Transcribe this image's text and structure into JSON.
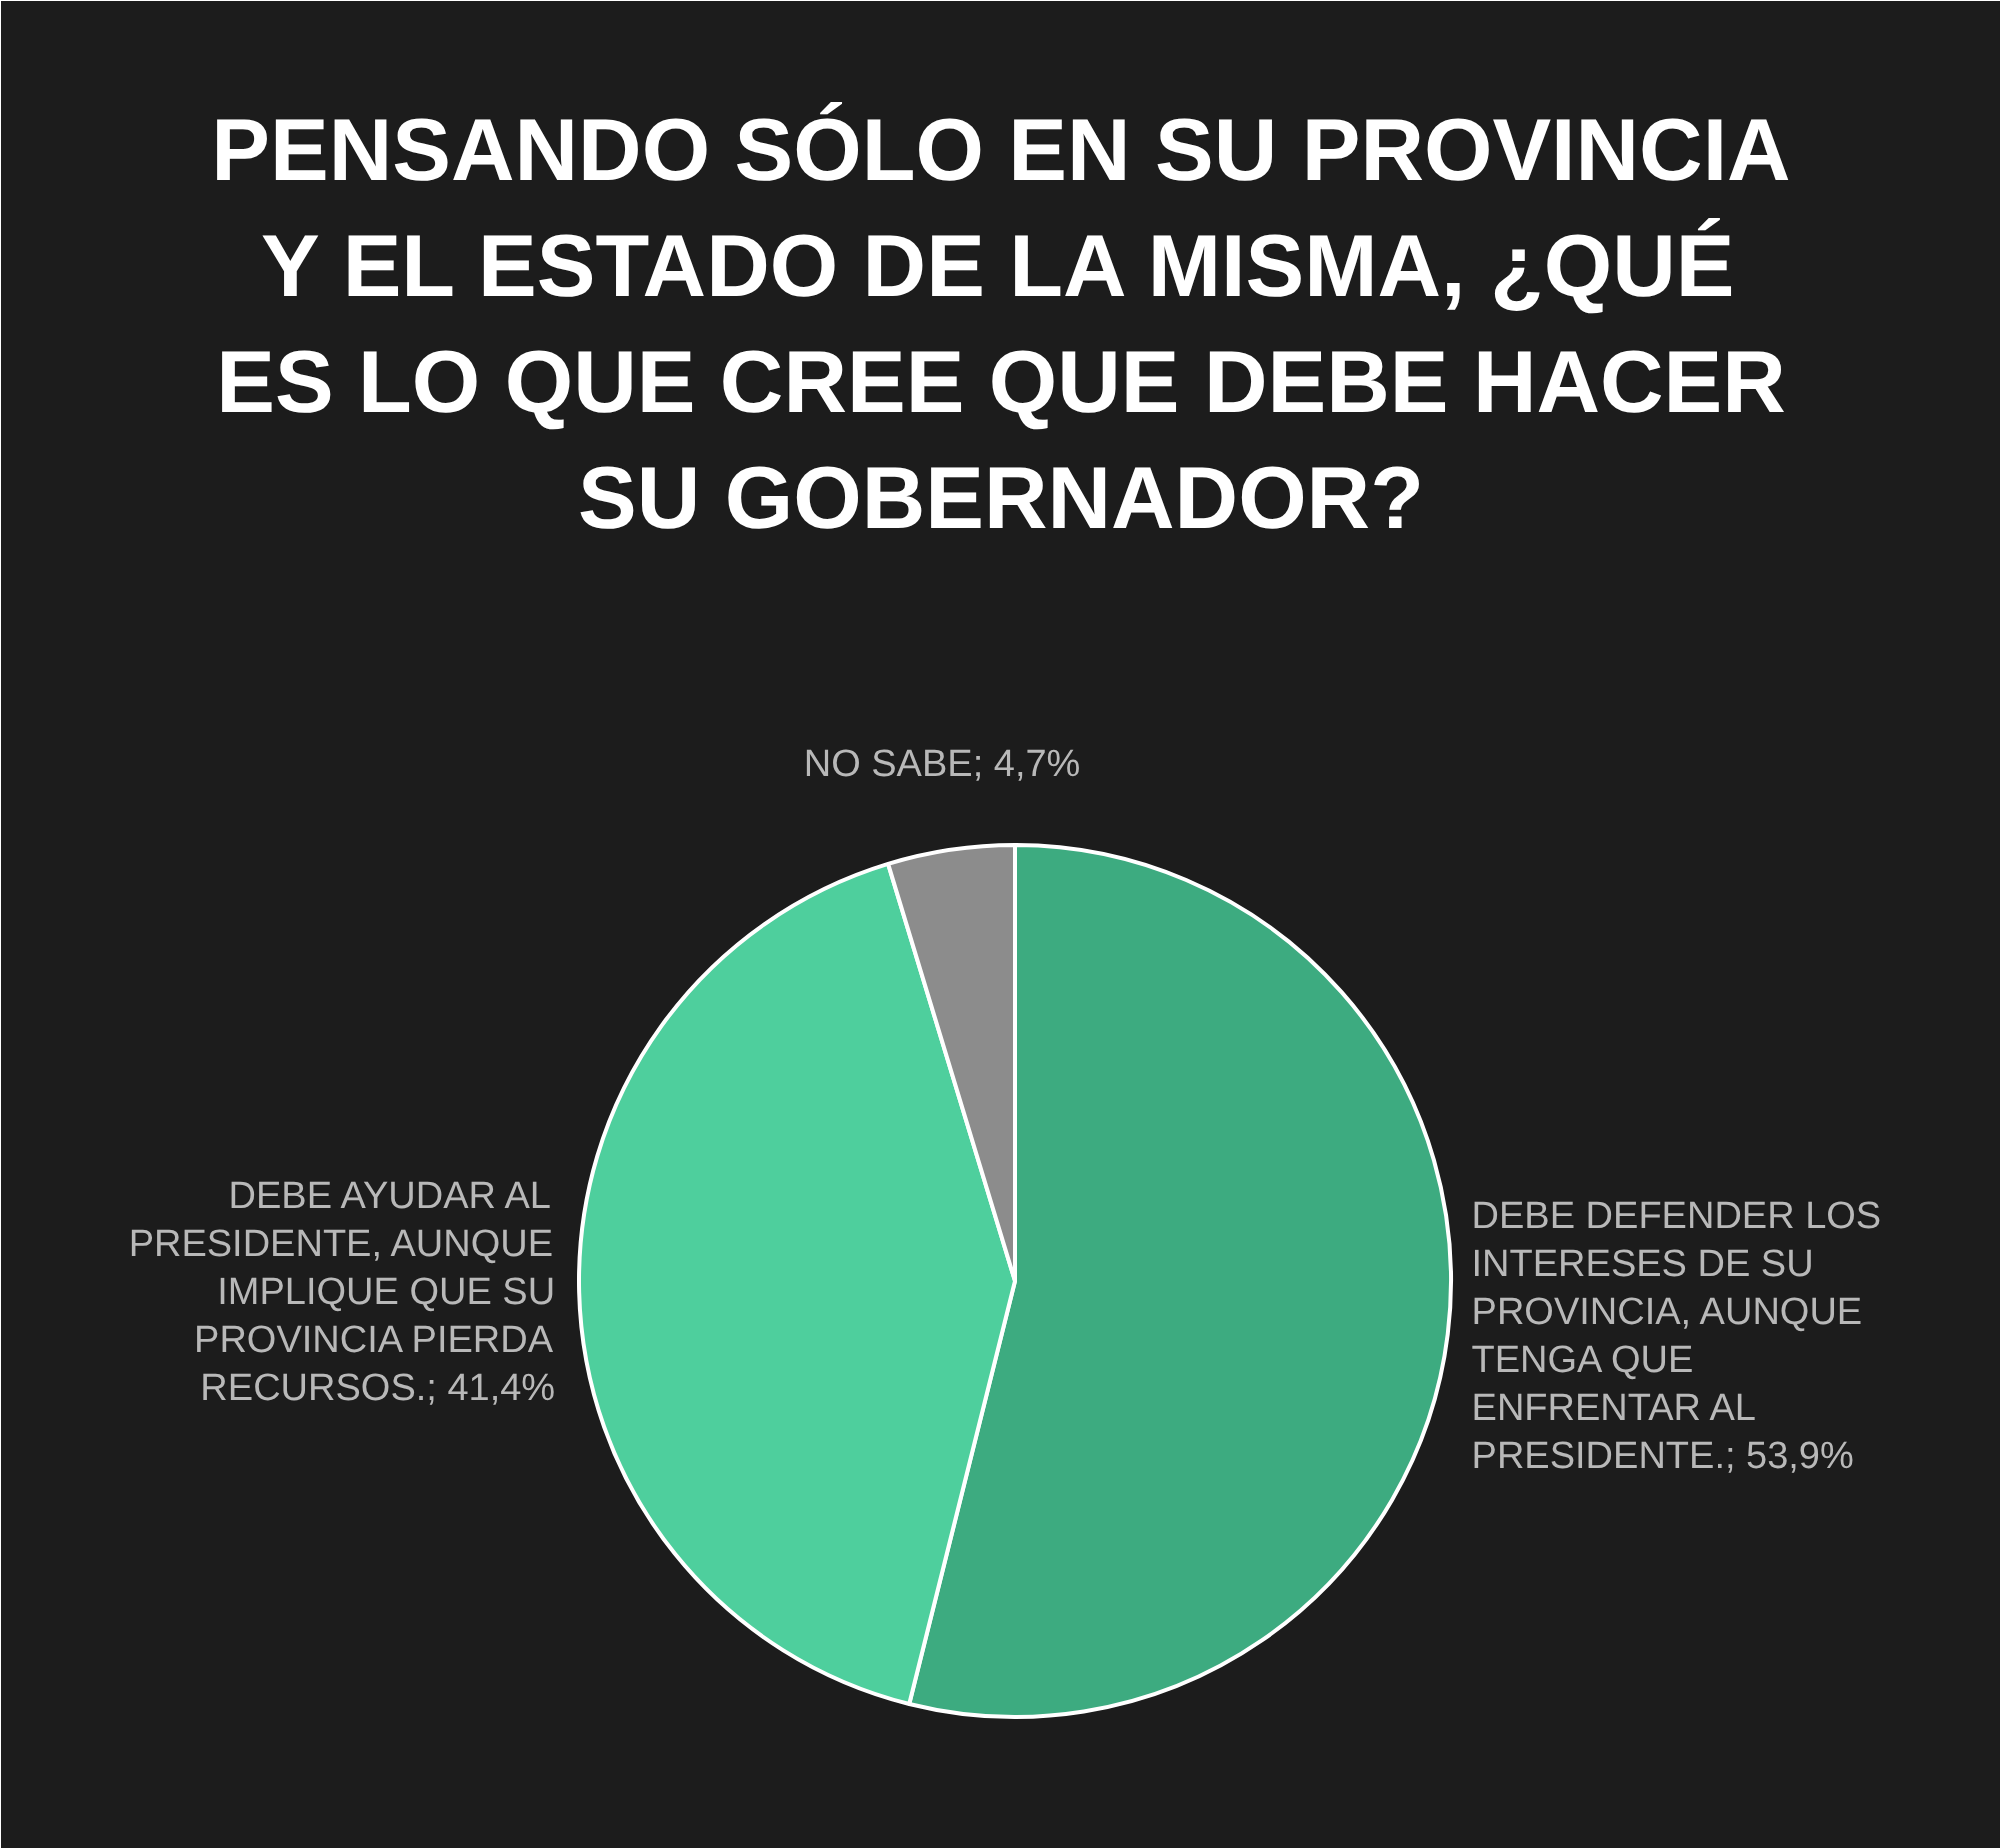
{
  "chart_data": {
    "type": "pie",
    "title": "PENSANDO SÓLO EN SU PROVINCIA Y EL ESTADO DE LA MISMA, ¿QUÉ ES LO QUE CREE QUE DEBE HACER SU GOBERNADOR?",
    "categories": [
      "DEBE DEFENDER LOS INTERESES DE SU PROVINCIA, AUNQUE TENGA QUE ENFRENTAR AL PRESIDENTE.",
      "DEBE AYUDAR AL PRESIDENTE, AUNQUE IMPLIQUE QUE SU PROVINCIA PIERDA RECURSOS.",
      "NO SABE"
    ],
    "values": [
      53.9,
      41.4,
      4.7
    ],
    "value_labels": [
      "53,9%",
      "41,4%",
      "4,7%"
    ],
    "colors": [
      "#3dab80",
      "#4ecf9d",
      "#8c8c8c"
    ]
  }
}
